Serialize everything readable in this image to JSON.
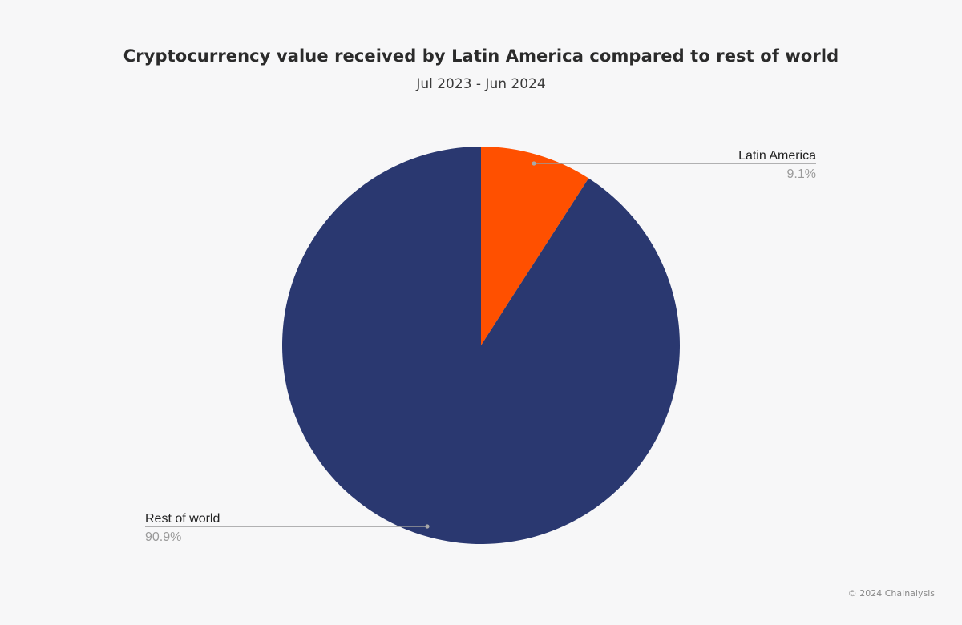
{
  "chart_data": {
    "type": "pie",
    "title": "Cryptocurrency value received by Latin America compared to rest of world",
    "subtitle": "Jul 2023 - Jun 2024",
    "slices": [
      {
        "label": "Latin America",
        "value": 9.1,
        "value_label": "9.1%",
        "color": "#ff5000"
      },
      {
        "label": "Rest of world",
        "value": 90.9,
        "value_label": "90.9%",
        "color": "#2a3870"
      }
    ],
    "legend": "none"
  },
  "footer": {
    "copyright": "© 2024 Chainalysis"
  }
}
